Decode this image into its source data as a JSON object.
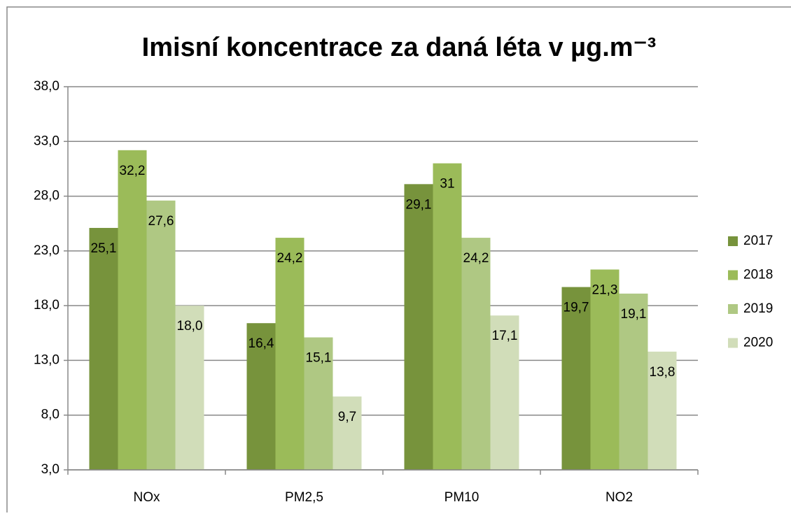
{
  "chart_data": {
    "type": "bar",
    "title": "Imisní koncentrace za daná léta v µg.m⁻³",
    "categories": [
      "NOx",
      "PM2,5",
      "PM10",
      "NO2"
    ],
    "series": [
      {
        "name": "2017",
        "color": "#77933c",
        "values": [
          25.1,
          16.4,
          29.1,
          19.7
        ],
        "value_labels": [
          "25,1",
          "16,4",
          "29,1",
          "19,7"
        ]
      },
      {
        "name": "2018",
        "color": "#9bbb59",
        "values": [
          32.2,
          24.2,
          31,
          21.3
        ],
        "value_labels": [
          "32,2",
          "24,2",
          "31",
          "21,3"
        ]
      },
      {
        "name": "2019",
        "color": "#afc883",
        "values": [
          27.6,
          15.1,
          24.2,
          19.1
        ],
        "value_labels": [
          "27,6",
          "15,1",
          "24,2",
          "19,1"
        ]
      },
      {
        "name": "2020",
        "color": "#d1ddb9",
        "values": [
          18.0,
          9.7,
          17.1,
          13.8
        ],
        "value_labels": [
          "18,0",
          "9,7",
          "17,1",
          "13,8"
        ]
      }
    ],
    "ylim": [
      3,
      38
    ],
    "yticks": [
      {
        "value": 3,
        "label": "3,0"
      },
      {
        "value": 8,
        "label": "8,0"
      },
      {
        "value": 13,
        "label": "13,0"
      },
      {
        "value": 18,
        "label": "18,0"
      },
      {
        "value": 23,
        "label": "23,0"
      },
      {
        "value": 28,
        "label": "28,0"
      },
      {
        "value": 33,
        "label": "33,0"
      },
      {
        "value": 38,
        "label": "38,0"
      }
    ],
    "grid": true,
    "legend": "right"
  }
}
